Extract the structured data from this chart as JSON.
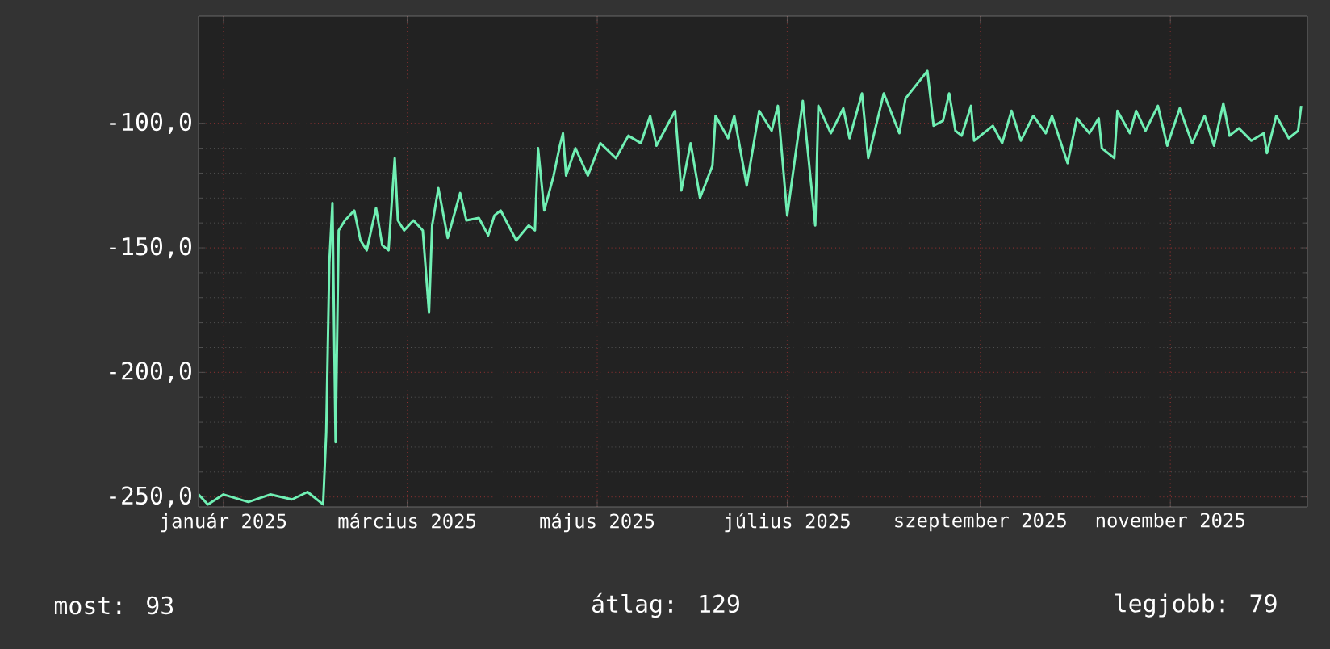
{
  "chart_data": {
    "type": "line",
    "color": "#70f0b4",
    "grid": true,
    "xlim": [
      "2024-12-24",
      "2025-12-15"
    ],
    "ylim": [
      -254,
      -57
    ],
    "xticks": [
      {
        "value": "2025-01-01",
        "label": "január 2025"
      },
      {
        "value": "2025-03-01",
        "label": "március 2025"
      },
      {
        "value": "2025-05-01",
        "label": "május 2025"
      },
      {
        "value": "2025-07-01",
        "label": "július 2025"
      },
      {
        "value": "2025-09-01",
        "label": "szeptember 2025"
      },
      {
        "value": "2025-11-01",
        "label": "november 2025"
      }
    ],
    "yticks": [
      {
        "value": -250,
        "label": "-250,0"
      },
      {
        "value": -200,
        "label": "-200,0"
      },
      {
        "value": -150,
        "label": "-150,0"
      },
      {
        "value": -100,
        "label": "-100,0"
      }
    ],
    "annotations": [
      "most: 93",
      "átlag: 129",
      "legjobb: 79"
    ],
    "x": [
      "2024-12-24",
      "2024-12-27",
      "2025-01-01",
      "2025-01-09",
      "2025-01-16",
      "2025-01-23",
      "2025-01-28",
      "2025-01-31",
      "2025-02-02",
      "2025-02-03",
      "2025-02-04",
      "2025-02-05",
      "2025-02-06",
      "2025-02-07",
      "2025-02-09",
      "2025-02-12",
      "2025-02-14",
      "2025-02-16",
      "2025-02-19",
      "2025-02-21",
      "2025-02-23",
      "2025-02-25",
      "2025-02-26",
      "2025-02-28",
      "2025-03-03",
      "2025-03-06",
      "2025-03-08",
      "2025-03-09",
      "2025-03-11",
      "2025-03-14",
      "2025-03-18",
      "2025-03-20",
      "2025-03-24",
      "2025-03-27",
      "2025-03-29",
      "2025-03-31",
      "2025-04-05",
      "2025-04-09",
      "2025-04-11",
      "2025-04-12",
      "2025-04-14",
      "2025-04-17",
      "2025-04-19",
      "2025-04-20",
      "2025-04-21",
      "2025-04-24",
      "2025-04-28",
      "2025-05-02",
      "2025-05-07",
      "2025-05-11",
      "2025-05-15",
      "2025-05-18",
      "2025-05-20",
      "2025-05-26",
      "2025-05-28",
      "2025-05-31",
      "2025-06-03",
      "2025-06-07",
      "2025-06-08",
      "2025-06-12",
      "2025-06-14",
      "2025-06-18",
      "2025-06-22",
      "2025-06-26",
      "2025-06-28",
      "2025-07-01",
      "2025-07-06",
      "2025-07-10",
      "2025-07-11",
      "2025-07-15",
      "2025-07-19",
      "2025-07-21",
      "2025-07-25",
      "2025-07-27",
      "2025-08-01",
      "2025-08-06",
      "2025-08-08",
      "2025-08-15",
      "2025-08-17",
      "2025-08-20",
      "2025-08-22",
      "2025-08-24",
      "2025-08-26",
      "2025-08-29",
      "2025-08-30",
      "2025-09-05",
      "2025-09-08",
      "2025-09-11",
      "2025-09-14",
      "2025-09-18",
      "2025-09-22",
      "2025-09-24",
      "2025-09-29",
      "2025-10-02",
      "2025-10-06",
      "2025-10-09",
      "2025-10-10",
      "2025-10-14",
      "2025-10-15",
      "2025-10-19",
      "2025-10-21",
      "2025-10-24",
      "2025-10-28",
      "2025-10-31",
      "2025-11-04",
      "2025-11-08",
      "2025-11-12",
      "2025-11-15",
      "2025-11-18",
      "2025-11-20",
      "2025-11-23",
      "2025-11-27",
      "2025-12-01",
      "2025-12-02",
      "2025-12-05",
      "2025-12-09",
      "2025-12-12",
      "2025-12-13"
    ],
    "values": [
      -249,
      -253,
      -249,
      -252,
      -249,
      -251,
      -248,
      -251,
      -253,
      -224,
      -156,
      -132,
      -228,
      -143,
      -139,
      -135,
      -147,
      -151,
      -134,
      -149,
      -151,
      -114,
      -139,
      -143,
      -139,
      -143,
      -176,
      -141,
      -126,
      -146,
      -128,
      -139,
      -138,
      -145,
      -137,
      -135,
      -147,
      -141,
      -143,
      -110,
      -135,
      -121,
      -109,
      -104,
      -121,
      -110,
      -121,
      -108,
      -114,
      -105,
      -108,
      -97,
      -109,
      -95,
      -127,
      -108,
      -130,
      -117,
      -97,
      -106,
      -97,
      -125,
      -95,
      -103,
      -93,
      -137,
      -91,
      -141,
      -93,
      -104,
      -94,
      -106,
      -88,
      -114,
      -88,
      -104,
      -90,
      -79,
      -101,
      -99,
      -88,
      -103,
      -105,
      -93,
      -107,
      -101,
      -108,
      -95,
      -107,
      -97,
      -104,
      -97,
      -116,
      -98,
      -104,
      -98,
      -110,
      -114,
      -95,
      -104,
      -95,
      -103,
      -93,
      -109,
      -94,
      -108,
      -97,
      -109,
      -92,
      -105,
      -102,
      -107,
      -104,
      -112,
      -97,
      -106,
      -103,
      -93
    ]
  }
}
